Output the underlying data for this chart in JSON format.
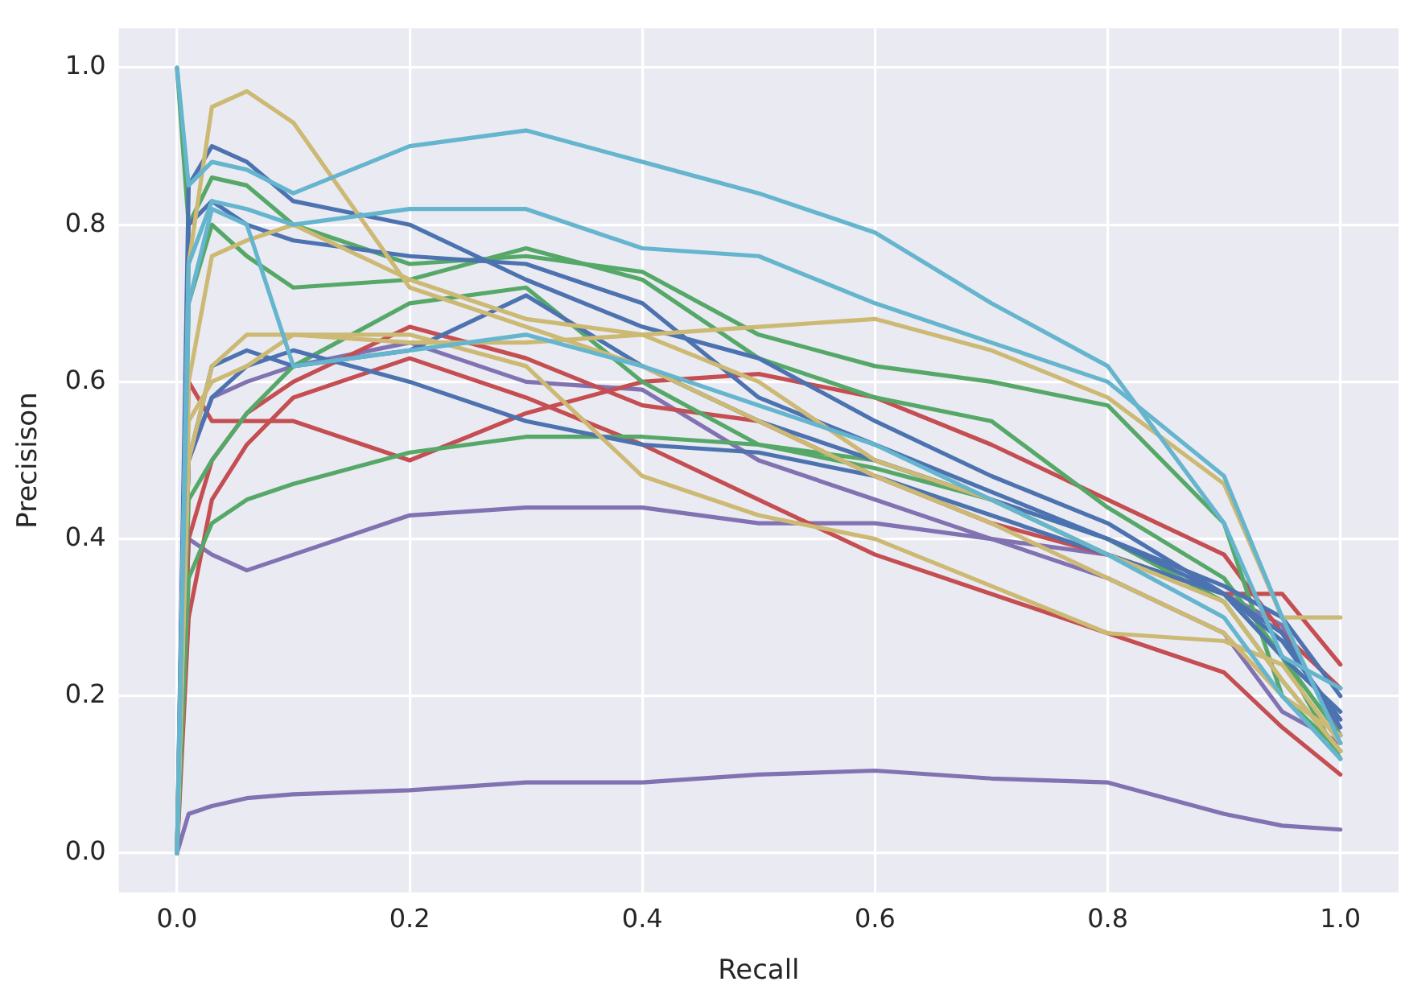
{
  "chart_data": {
    "type": "line",
    "xlabel": "Recall",
    "ylabel": "Precisison",
    "x": [
      0,
      0.01,
      0.03,
      0.06,
      0.1,
      0.2,
      0.3,
      0.4,
      0.5,
      0.6,
      0.7,
      0.8,
      0.9,
      0.95,
      1.0
    ],
    "xlim": [
      -0.05,
      1.05
    ],
    "ylim": [
      -0.05,
      1.05
    ],
    "xticks": [
      {
        "value": 0,
        "label": "0.0"
      },
      {
        "value": 0.2,
        "label": "0.2"
      },
      {
        "value": 0.4,
        "label": "0.4"
      },
      {
        "value": 0.6,
        "label": "0.6"
      },
      {
        "value": 0.8,
        "label": "0.8"
      },
      {
        "value": 1,
        "label": "1.0"
      }
    ],
    "yticks": [
      {
        "value": 0,
        "label": "0.0"
      },
      {
        "value": 0.2,
        "label": "0.2"
      },
      {
        "value": 0.4,
        "label": "0.4"
      },
      {
        "value": 0.6,
        "label": "0.6"
      },
      {
        "value": 0.8,
        "label": "0.8"
      },
      {
        "value": 1,
        "label": "1.0"
      }
    ],
    "grid": true,
    "legend": false,
    "marker": "none",
    "line_style": "solid",
    "series": [
      {
        "color": "#64b5cd",
        "values": [
          1.0,
          0.85,
          0.88,
          0.87,
          0.84,
          0.9,
          0.92,
          0.88,
          0.84,
          0.79,
          0.7,
          0.62,
          0.42,
          0.25,
          0.21
        ]
      },
      {
        "color": "#64b5cd",
        "values": [
          0,
          0.75,
          0.83,
          0.82,
          0.8,
          0.82,
          0.82,
          0.77,
          0.76,
          0.7,
          0.65,
          0.6,
          0.48,
          0.3,
          0.14
        ]
      },
      {
        "color": "#64b5cd",
        "values": [
          0,
          0.7,
          0.82,
          0.8,
          0.62,
          0.64,
          0.66,
          0.62,
          0.57,
          0.52,
          0.45,
          0.38,
          0.3,
          0.2,
          0.12
        ]
      },
      {
        "color": "#ccb974",
        "values": [
          0,
          0.75,
          0.95,
          0.97,
          0.93,
          0.72,
          0.67,
          0.62,
          0.55,
          0.48,
          0.42,
          0.35,
          0.28,
          0.2,
          0.15
        ]
      },
      {
        "color": "#ccb974",
        "values": [
          0,
          0.6,
          0.76,
          0.78,
          0.8,
          0.73,
          0.68,
          0.66,
          0.6,
          0.5,
          0.45,
          0.38,
          0.32,
          0.22,
          0.13
        ]
      },
      {
        "color": "#ccb974",
        "values": [
          0,
          0.5,
          0.62,
          0.66,
          0.66,
          0.65,
          0.65,
          0.66,
          0.67,
          0.68,
          0.64,
          0.58,
          0.47,
          0.3,
          0.3
        ]
      },
      {
        "color": "#ccb974",
        "values": [
          0,
          0.55,
          0.6,
          0.62,
          0.66,
          0.66,
          0.62,
          0.48,
          0.43,
          0.4,
          0.34,
          0.28,
          0.27,
          0.24,
          0.14
        ]
      },
      {
        "color": "#4c72b0",
        "values": [
          0,
          0.85,
          0.9,
          0.88,
          0.83,
          0.8,
          0.73,
          0.67,
          0.63,
          0.55,
          0.48,
          0.42,
          0.33,
          0.25,
          0.18
        ]
      },
      {
        "color": "#4c72b0",
        "values": [
          0,
          0.8,
          0.83,
          0.8,
          0.78,
          0.76,
          0.75,
          0.7,
          0.58,
          0.52,
          0.46,
          0.4,
          0.33,
          0.27,
          0.17
        ]
      },
      {
        "color": "#4c72b0",
        "values": [
          0,
          0.5,
          0.62,
          0.64,
          0.62,
          0.64,
          0.71,
          0.62,
          0.55,
          0.5,
          0.45,
          0.4,
          0.34,
          0.3,
          0.2
        ]
      },
      {
        "color": "#4c72b0",
        "values": [
          0,
          0.5,
          0.58,
          0.62,
          0.64,
          0.6,
          0.55,
          0.52,
          0.51,
          0.48,
          0.43,
          0.38,
          0.33,
          0.28,
          0.16
        ]
      },
      {
        "color": "#55a868",
        "values": [
          1.0,
          0.8,
          0.86,
          0.85,
          0.8,
          0.75,
          0.76,
          0.74,
          0.66,
          0.62,
          0.6,
          0.57,
          0.42,
          0.2,
          0.13
        ]
      },
      {
        "color": "#55a868",
        "values": [
          0,
          0.7,
          0.8,
          0.76,
          0.72,
          0.73,
          0.77,
          0.73,
          0.63,
          0.58,
          0.55,
          0.44,
          0.35,
          0.25,
          0.15
        ]
      },
      {
        "color": "#55a868",
        "values": [
          0,
          0.45,
          0.5,
          0.56,
          0.62,
          0.7,
          0.72,
          0.6,
          0.52,
          0.49,
          0.45,
          0.38,
          0.33,
          0.25,
          0.12
        ]
      },
      {
        "color": "#55a868",
        "values": [
          0,
          0.35,
          0.42,
          0.45,
          0.47,
          0.51,
          0.53,
          0.53,
          0.52,
          0.5,
          0.45,
          0.4,
          0.32,
          0.22,
          0.13
        ]
      },
      {
        "color": "#c44e52",
        "values": [
          0,
          0.6,
          0.55,
          0.55,
          0.55,
          0.5,
          0.56,
          0.6,
          0.61,
          0.58,
          0.52,
          0.45,
          0.38,
          0.28,
          0.21
        ]
      },
      {
        "color": "#c44e52",
        "values": [
          0,
          0.4,
          0.5,
          0.56,
          0.6,
          0.67,
          0.63,
          0.57,
          0.55,
          0.48,
          0.42,
          0.38,
          0.33,
          0.33,
          0.24
        ]
      },
      {
        "color": "#c44e52",
        "values": [
          0,
          0.3,
          0.45,
          0.52,
          0.58,
          0.63,
          0.58,
          0.52,
          0.45,
          0.38,
          0.33,
          0.28,
          0.23,
          0.16,
          0.1
        ]
      },
      {
        "color": "#8172b2",
        "values": [
          0,
          0.4,
          0.38,
          0.36,
          0.38,
          0.43,
          0.44,
          0.44,
          0.42,
          0.42,
          0.4,
          0.38,
          0.33,
          0.29,
          0.15
        ]
      },
      {
        "color": "#8172b2",
        "values": [
          0,
          0.5,
          0.58,
          0.6,
          0.62,
          0.65,
          0.6,
          0.59,
          0.5,
          0.45,
          0.4,
          0.35,
          0.28,
          0.18,
          0.14
        ]
      },
      {
        "color": "#8172b2",
        "values": [
          0,
          0.05,
          0.06,
          0.07,
          0.075,
          0.08,
          0.09,
          0.09,
          0.1,
          0.105,
          0.095,
          0.09,
          0.05,
          0.035,
          0.03
        ]
      }
    ]
  }
}
